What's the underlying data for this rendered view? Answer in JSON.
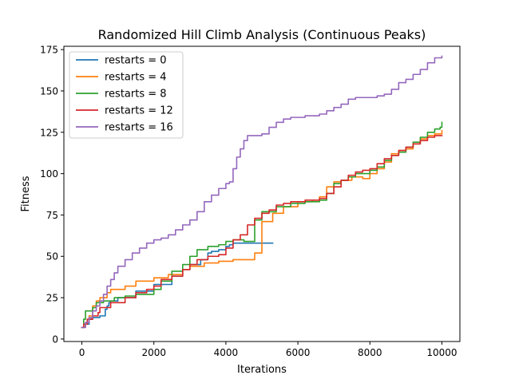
{
  "chart_data": {
    "type": "line",
    "title": "Randomized Hill Climb Analysis (Continuous Peaks)",
    "xlabel": "Iterations",
    "ylabel": "Fitness",
    "xlim": [
      -500,
      10500
    ],
    "ylim": [
      -1.5,
      177
    ],
    "xticks": [
      0,
      2000,
      4000,
      6000,
      8000,
      10000
    ],
    "xtick_labels": [
      "0",
      "2000",
      "4000",
      "6000",
      "8000",
      "10000"
    ],
    "yticks": [
      0,
      25,
      50,
      75,
      100,
      125,
      150,
      175
    ],
    "ytick_labels": [
      "0",
      "25",
      "50",
      "75",
      "100",
      "125",
      "150",
      "175"
    ],
    "grid": false,
    "legend_position": "top-left",
    "series": [
      {
        "name": "restarts = 0",
        "color": "#1f77b4",
        "x": [
          0,
          100,
          200,
          300,
          500,
          650,
          700,
          750,
          800,
          1000,
          1500,
          2000,
          2500,
          2800,
          3000,
          3300,
          3500,
          3600,
          3800,
          4000,
          4100,
          4200,
          4500,
          5000,
          5300
        ],
        "y": [
          7,
          9,
          12,
          13,
          14,
          18,
          20,
          22,
          23,
          25,
          29,
          33,
          38,
          42,
          45,
          48,
          52,
          53,
          54,
          56,
          57,
          58,
          58,
          58,
          58
        ]
      },
      {
        "name": "restarts = 4",
        "color": "#ff7f0e",
        "x": [
          0,
          100,
          200,
          300,
          400,
          500,
          700,
          800,
          1200,
          1500,
          2000,
          2400,
          2800,
          3000,
          3400,
          3800,
          4200,
          4500,
          4800,
          5000,
          5300,
          5600,
          6000,
          6400,
          6600,
          6800,
          7000,
          7200,
          7500,
          7800,
          8000,
          8200,
          8400,
          8600,
          8800,
          9000,
          9200,
          9400,
          9600,
          9800,
          10000
        ],
        "y": [
          7,
          10,
          14,
          20,
          23,
          25,
          28,
          30,
          32,
          35,
          37,
          39,
          42,
          44,
          46,
          47,
          48,
          48,
          52,
          71,
          76,
          80,
          83,
          84,
          86,
          92,
          95,
          96,
          98,
          97,
          100,
          103,
          107,
          112,
          114,
          115,
          118,
          121,
          123,
          124,
          126
        ]
      },
      {
        "name": "restarts = 8",
        "color": "#2ca02c",
        "x": [
          0,
          50,
          100,
          300,
          400,
          600,
          900,
          1200,
          1500,
          2000,
          2200,
          2500,
          2800,
          3000,
          3200,
          3500,
          3800,
          4000,
          4200,
          4500,
          4800,
          5000,
          5400,
          5800,
          6200,
          6600,
          6800,
          7000,
          7200,
          7400,
          7600,
          8000,
          8200,
          8400,
          8600,
          8800,
          9000,
          9200,
          9400,
          9600,
          9800,
          9950,
          10000
        ],
        "y": [
          7,
          12,
          17,
          19,
          22,
          23,
          25,
          26,
          27,
          30,
          35,
          41,
          45,
          50,
          54,
          56,
          57,
          59,
          60,
          59,
          72,
          77,
          80,
          82,
          83,
          84,
          88,
          94,
          96,
          98,
          100,
          102,
          104,
          108,
          111,
          113,
          116,
          119,
          122,
          125,
          127,
          128,
          131
        ]
      },
      {
        "name": "restarts = 12",
        "color": "#d62728",
        "x": [
          0,
          50,
          150,
          300,
          450,
          500,
          800,
          1200,
          1500,
          1800,
          2000,
          2200,
          2500,
          2800,
          3000,
          3200,
          3500,
          3800,
          4000,
          4200,
          4400,
          4600,
          4800,
          5000,
          5200,
          5400,
          5600,
          5800,
          6000,
          6200,
          6400,
          6600,
          6800,
          7000,
          7200,
          7400,
          7600,
          7800,
          8000,
          8200,
          8400,
          8600,
          8800,
          9000,
          9200,
          9400,
          9600,
          9800,
          10000
        ],
        "y": [
          7,
          9,
          12,
          14,
          16,
          19,
          22,
          25,
          28,
          30,
          32,
          36,
          38,
          42,
          45,
          48,
          50,
          51,
          55,
          60,
          63,
          69,
          73,
          76,
          78,
          81,
          82,
          83,
          83,
          84,
          84,
          85,
          88,
          92,
          96,
          99,
          101,
          102,
          103,
          106,
          109,
          111,
          114,
          116,
          118,
          120,
          122,
          123,
          123
        ]
      },
      {
        "name": "restarts = 16",
        "color": "#9467bd",
        "x": [
          0,
          100,
          200,
          300,
          400,
          500,
          600,
          700,
          800,
          900,
          1000,
          1200,
          1400,
          1600,
          1800,
          2000,
          2200,
          2400,
          2600,
          2800,
          3000,
          3200,
          3400,
          3600,
          3800,
          4000,
          4100,
          4200,
          4300,
          4400,
          4500,
          4600,
          4800,
          5000,
          5200,
          5400,
          5600,
          5800,
          6000,
          6200,
          6400,
          6600,
          6800,
          7000,
          7200,
          7400,
          7600,
          7800,
          8000,
          8200,
          8400,
          8600,
          8800,
          9000,
          9200,
          9400,
          9600,
          9800,
          10000
        ],
        "y": [
          7,
          10,
          13,
          17,
          20,
          23,
          27,
          32,
          36,
          40,
          44,
          48,
          52,
          55,
          58,
          60,
          61,
          63,
          66,
          69,
          72,
          77,
          83,
          87,
          91,
          94,
          95,
          103,
          110,
          115,
          120,
          123,
          123,
          124,
          128,
          131,
          133,
          134,
          134,
          135,
          135,
          136,
          138,
          140,
          142,
          145,
          146,
          146,
          146,
          147,
          148,
          151,
          155,
          157,
          160,
          163,
          167,
          170,
          171
        ]
      }
    ]
  }
}
